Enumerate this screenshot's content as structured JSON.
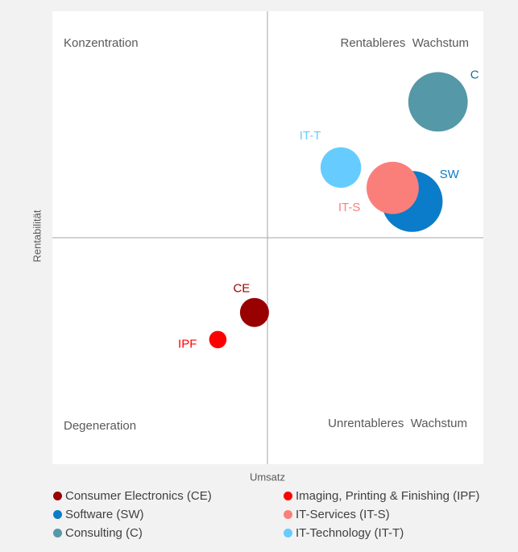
{
  "chart_data": {
    "type": "scatter",
    "subtype": "bubble",
    "xlabel": "Umsatz",
    "ylabel": "Rentabilität",
    "quadrants": {
      "top_left": "Konzentration",
      "top_right": "Rentableres  Wachstum",
      "bottom_left": "Degeneration",
      "bottom_right": "Unrentableres  Wachstum"
    },
    "axis_ticks": false,
    "legend_position": "bottom",
    "series": [
      {
        "key": "CE",
        "name": "Consumer Electronics (CE)",
        "label": "CE",
        "x": -0.06,
        "y": -0.33,
        "size": 1.0,
        "color": "#990000"
      },
      {
        "key": "IPF",
        "name": "Imaging, Printing & Finishing (IPF)",
        "label": "IPF",
        "x": -0.23,
        "y": -0.45,
        "size": 0.6,
        "color": "#ff0000"
      },
      {
        "key": "SW",
        "name": "Software (SW)",
        "label": "SW",
        "x": 0.67,
        "y": 0.16,
        "size": 2.1,
        "color": "#0a7cc9"
      },
      {
        "key": "IT-S",
        "name": "IT-Services (IT-S)",
        "label": "IT-S",
        "x": 0.58,
        "y": 0.22,
        "size": 1.8,
        "color": "#fa7f7b"
      },
      {
        "key": "C",
        "name": "Consulting (C)",
        "label": "C",
        "x": 0.79,
        "y": 0.6,
        "size": 2.05,
        "color": "#5598a8"
      },
      {
        "key": "IT-T",
        "name": "IT-Technology (IT-T)",
        "label": "IT-T",
        "x": 0.34,
        "y": 0.31,
        "size": 1.4,
        "color": "#66ccff"
      }
    ]
  }
}
